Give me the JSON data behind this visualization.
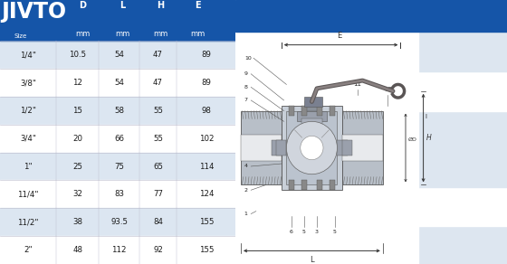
{
  "brand": "JIVTO",
  "header_bg": "#1555a8",
  "header_text_color": "#ffffff",
  "col_headers_line1": [
    "",
    "D",
    "L",
    "H",
    "E"
  ],
  "col_headers_line2": [
    "Size",
    "mm",
    "mm",
    "mm",
    "mm"
  ],
  "rows": [
    [
      "1/4\"",
      "10.5",
      "54",
      "47",
      "89"
    ],
    [
      "3/8\"",
      "12",
      "54",
      "47",
      "89"
    ],
    [
      "1/2\"",
      "15",
      "58",
      "55",
      "98"
    ],
    [
      "3/4\"",
      "20",
      "66",
      "55",
      "102"
    ],
    [
      "1\"",
      "25",
      "75",
      "65",
      "114"
    ],
    [
      "11/4\"",
      "32",
      "83",
      "77",
      "124"
    ],
    [
      "11/2\"",
      "38",
      "93.5",
      "84",
      "155"
    ],
    [
      "2\"",
      "48",
      "112",
      "92",
      "155"
    ]
  ],
  "row_bg_even": "#dce6f1",
  "row_bg_odd": "#ffffff",
  "table_text_color": "#1a1a1a",
  "right_panel_bands": [
    "#dde6f0",
    "#ffffff",
    "#dde6f0",
    "#ffffff",
    "#dde6f0"
  ],
  "dim_color": "#333333",
  "body_fill": "#b8bfc8",
  "body_edge": "#555555",
  "thread_color": "#888888",
  "ball_fill": "#d0d5dd",
  "stem_fill": "#a8b0be",
  "handle_fill": "#666060",
  "white": "#ffffff",
  "bg_white": "#ffffff",
  "light_blue_band": "#d0dce8"
}
